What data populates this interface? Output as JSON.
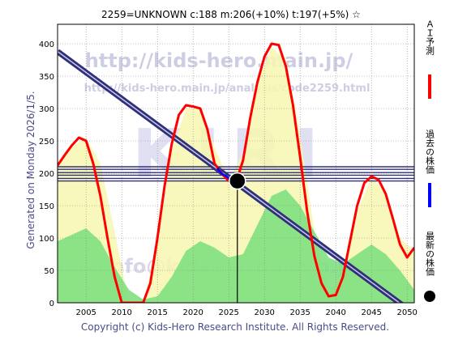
{
  "header": "2259=UNKNOWN    c:188  m:206(+10%)  t:197(+5%)  ☆",
  "side_label": "Generated on Monday 2026/1/5.",
  "footer": "Copyright (c) Kids-Hero Research Institute. All Rights Reserved.",
  "watermarks": {
    "url": "http://kids-hero.main.jp/",
    "analysis": "http://kids-hero.main.jp/analysis/code2259.html",
    "logo": "KIRI",
    "email": "info@kids-hero.main.jp"
  },
  "legend": [
    {
      "label": "ＡＩ予測",
      "color": "#ff0000",
      "marker": "line"
    },
    {
      "label": "過去の株価",
      "color": "#0000ff",
      "marker": "line"
    },
    {
      "label": "最新の株価",
      "color": "#000000",
      "marker": "dot"
    }
  ],
  "colors": {
    "green": "#7fe07f",
    "yellow": "#f7f7b0",
    "red": "#ff0000",
    "navy": "#30307a",
    "blue": "#0000ff",
    "grid": "#888888"
  },
  "chart_data": {
    "type": "line",
    "xlim": [
      2001,
      2051
    ],
    "ylim": [
      0,
      430
    ],
    "x_ticks": [
      2005,
      2010,
      2015,
      2020,
      2025,
      2030,
      2035,
      2040,
      2045,
      2050
    ],
    "y_ticks": [
      0,
      50,
      100,
      150,
      200,
      250,
      300,
      350,
      400
    ],
    "grid": true,
    "current": {
      "x": 2026.2,
      "y": 188
    },
    "horizontal_lines": [
      210,
      206,
      201,
      197,
      192,
      188
    ],
    "trend_line": {
      "x": [
        2001,
        2051
      ],
      "y": [
        388,
        -17
      ]
    },
    "series": [
      {
        "name": "ＡＩ予測",
        "x": [
          2001,
          2002,
          2003,
          2004,
          2005,
          2006,
          2007,
          2008,
          2009,
          2010,
          2011,
          2012,
          2013,
          2014,
          2015,
          2016,
          2017,
          2018,
          2019,
          2020,
          2021,
          2022,
          2023,
          2024,
          2025,
          2026,
          2027,
          2028,
          2029,
          2030,
          2031,
          2032,
          2033,
          2034,
          2035,
          2036,
          2037,
          2038,
          2039,
          2040,
          2041,
          2042,
          2043,
          2044,
          2045,
          2046,
          2047,
          2048,
          2049,
          2050,
          2051
        ],
        "y": [
          212,
          228,
          243,
          255,
          250,
          215,
          165,
          100,
          40,
          0,
          0,
          0,
          0,
          30,
          100,
          180,
          245,
          290,
          305,
          303,
          300,
          268,
          215,
          200,
          188,
          185,
          220,
          285,
          340,
          380,
          400,
          398,
          365,
          305,
          225,
          140,
          72,
          30,
          10,
          12,
          40,
          95,
          150,
          185,
          195,
          190,
          168,
          130,
          90,
          70,
          85
        ]
      },
      {
        "name": "過去の株価",
        "x": [
          2023.4,
          2023.8,
          2024.2,
          2024.6,
          2025.0,
          2025.6,
          2026.2
        ],
        "y": [
          208,
          202,
          198,
          196,
          192,
          190,
          188
        ]
      }
    ],
    "areas": [
      {
        "name": "green",
        "x": [
          2001,
          2003,
          2005,
          2007,
          2009,
          2011,
          2013,
          2015,
          2017,
          2019,
          2021,
          2023,
          2025,
          2027,
          2029,
          2031,
          2033,
          2035,
          2037,
          2039,
          2041,
          2043,
          2045,
          2047,
          2049,
          2051
        ],
        "y": [
          95,
          105,
          115,
          95,
          55,
          20,
          5,
          10,
          40,
          80,
          95,
          85,
          70,
          75,
          120,
          165,
          175,
          150,
          110,
          70,
          60,
          75,
          90,
          75,
          50,
          20
        ]
      },
      {
        "name": "yellow",
        "x": [
          2001,
          2003,
          2005,
          2007,
          2009,
          2011,
          2013,
          2015,
          2017,
          2019,
          2021,
          2023,
          2025,
          2027,
          2029,
          2031,
          2033,
          2035,
          2037,
          2039,
          2041,
          2043,
          2045,
          2047,
          2049,
          2051
        ],
        "y": [
          210,
          240,
          255,
          215,
          110,
          0,
          0,
          90,
          235,
          300,
          300,
          240,
          190,
          230,
          340,
          395,
          375,
          260,
          110,
          20,
          40,
          140,
          195,
          170,
          100,
          80
        ]
      }
    ]
  }
}
